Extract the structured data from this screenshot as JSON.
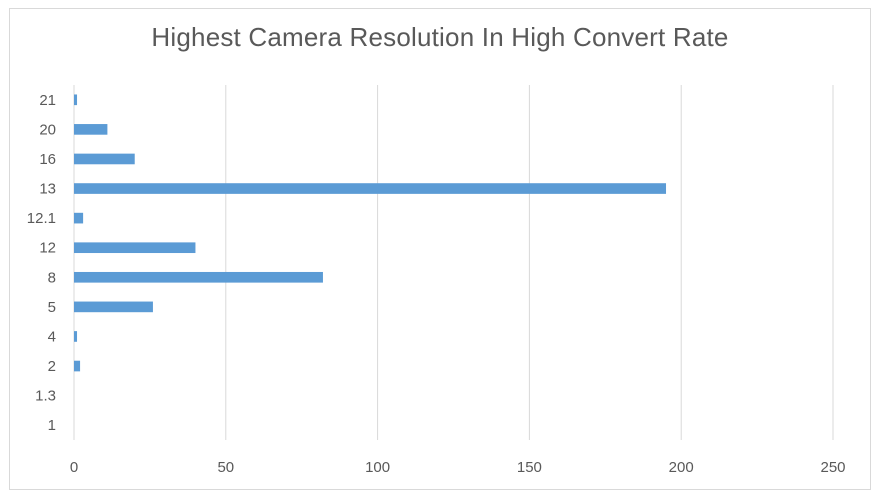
{
  "chart_data": {
    "type": "bar",
    "orientation": "horizontal",
    "title": "Highest Camera Resolution In High Convert Rate",
    "xlabel": "",
    "ylabel": "",
    "categories": [
      "1",
      "1.3",
      "2",
      "4",
      "5",
      "8",
      "12",
      "12.1",
      "13",
      "16",
      "20",
      "21"
    ],
    "values": [
      0,
      0,
      2,
      1,
      26,
      82,
      40,
      3,
      195,
      20,
      11,
      1
    ],
    "xlim": [
      0,
      250
    ],
    "xticks": [
      0,
      50,
      100,
      150,
      200,
      250
    ],
    "grid": "vertical",
    "legend": "none",
    "colors": {
      "bar": "#5b9bd5",
      "grid": "#d9d9d9",
      "text": "#595959"
    }
  }
}
